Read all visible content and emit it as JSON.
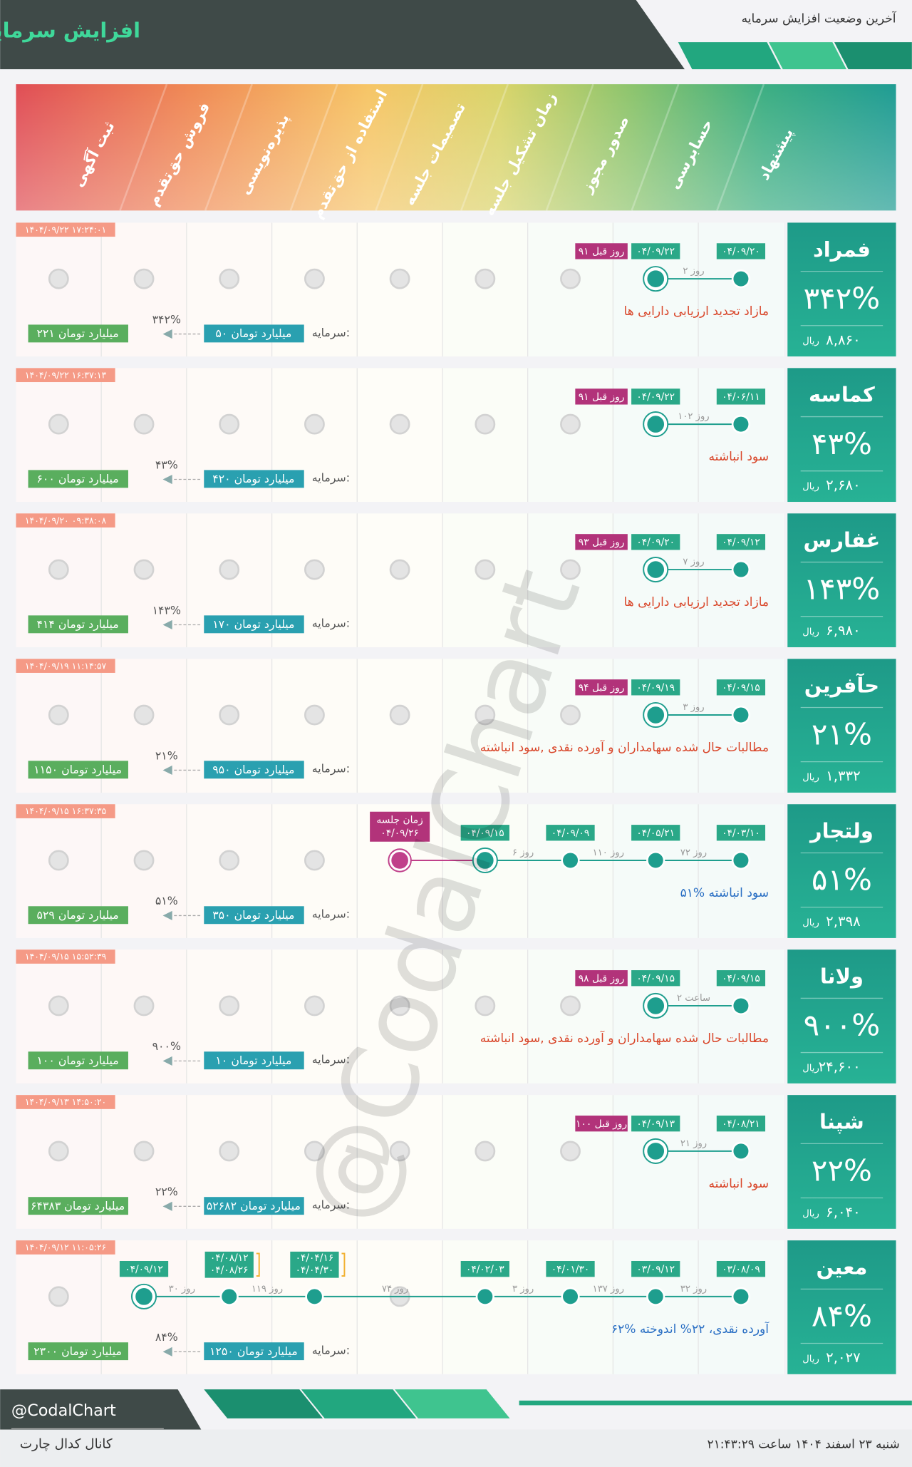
{
  "header": {
    "title": "افزایش سرمایه",
    "subtitle": "آخرین وضعیت افزایش سرمایه"
  },
  "stages": [
    "ثبت آگهی",
    "فروش حق‌تقدم",
    "پذیره‌نویسی",
    "استفاده از حق‌تقدم",
    "تصمیمات جلسه",
    "زمان تشکیل جلسه",
    "صدور مجوز",
    "حسابرسی",
    "پیشنهاد"
  ],
  "capital_label": "سرمایه:",
  "currency": "ریال",
  "watermark": "@CodalChart",
  "companies": [
    {
      "name": "فمراد",
      "change": "۳۴۲%",
      "price": "۸,۸۶۰",
      "updated": "۱۴۰۴/۰۹/۲۲ ۱۷:۲۴:۰۱",
      "ago": "۹۱ روز قبل",
      "nodes": [
        {
          "date": "۰۴/۰۹/۲۰"
        },
        {
          "date": "۰۴/۰۹/۲۲"
        }
      ],
      "gaps": [
        "۲ روز"
      ],
      "note": "مازاد تجدید ارزیابی دارایی ها",
      "note_color": "#d9472b",
      "capital_from": "۵۰ میلیارد تومان",
      "capital_to": "۲۲۱ میلیارد تومان",
      "growth": "۳۴۲%"
    },
    {
      "name": "کماسه",
      "change": "۴۳%",
      "price": "۲,۶۸۰",
      "updated": "۱۴۰۴/۰۹/۲۲ ۱۶:۳۷:۱۳",
      "ago": "۹۱ روز قبل",
      "nodes": [
        {
          "date": "۰۴/۰۶/۱۱"
        },
        {
          "date": "۰۴/۰۹/۲۲"
        }
      ],
      "gaps": [
        "۱۰۲ روز"
      ],
      "note": "سود انباشته",
      "note_color": "#d9472b",
      "capital_from": "۴۲۰ میلیارد تومان",
      "capital_to": "۶۰۰ میلیارد تومان",
      "growth": "۴۳%"
    },
    {
      "name": "غفارس",
      "change": "۱۴۳%",
      "price": "۶,۹۸۰",
      "updated": "۱۴۰۴/۰۹/۲۰ ۰۹:۳۸:۰۸",
      "ago": "۹۳ روز قبل",
      "nodes": [
        {
          "date": "۰۴/۰۹/۱۲"
        },
        {
          "date": "۰۴/۰۹/۲۰"
        }
      ],
      "gaps": [
        "۷ روز"
      ],
      "note": "مازاد تجدید ارزیابی دارایی ها",
      "note_color": "#d9472b",
      "capital_from": "۱۷۰ میلیارد تومان",
      "capital_to": "۴۱۴ میلیارد تومان",
      "growth": "۱۴۳%"
    },
    {
      "name": "حآفرین",
      "change": "۲۱%",
      "price": "۱,۳۳۲",
      "updated": "۱۴۰۴/۰۹/۱۹ ۱۱:۱۴:۵۷",
      "ago": "۹۴ روز قبل",
      "nodes": [
        {
          "date": "۰۴/۰۹/۱۵"
        },
        {
          "date": "۰۴/۰۹/۱۹"
        }
      ],
      "gaps": [
        "۳ روز"
      ],
      "note": "مطالبات حال شده سهامداران و آورده نقدی ,سود انباشته",
      "note_color": "#d9472b",
      "capital_from": "۹۵۰ میلیارد تومان",
      "capital_to": "۱۱۵۰ میلیارد تومان",
      "growth": "۲۱%"
    },
    {
      "name": "ولتجار",
      "change": "۵۱%",
      "price": "۲,۳۹۸",
      "updated": "۱۴۰۴/۰۹/۱۵ ۱۶:۳۷:۳۵",
      "nodes": [
        {
          "date": "۰۴/۰۳/۱۰"
        },
        {
          "date": "۰۴/۰۵/۲۱"
        },
        {
          "date": "۰۴/۰۹/۰۹"
        },
        {
          "date": "۰۴/۰۹/۱۵"
        }
      ],
      "gaps": [
        "۷۲ روز",
        "۱۱۰ روز",
        "۶ روز"
      ],
      "meeting": {
        "label": "زمان جلسه",
        "date": "۰۴/۰۹/۲۶"
      },
      "note": "۵۱% سود انباشته",
      "note_color": "#2a6fc4",
      "capital_from": "۳۵۰ میلیارد تومان",
      "capital_to": "۵۲۹ میلیارد تومان",
      "growth": "۵۱%"
    },
    {
      "name": "ولانا",
      "change": "۹۰۰%",
      "price": "۲۴,۶۰۰",
      "updated": "۱۴۰۴/۰۹/۱۵ ۱۵:۵۲:۳۹",
      "ago": "۹۸ روز قبل",
      "nodes": [
        {
          "date": "۰۴/۰۹/۱۵"
        },
        {
          "date": "۰۴/۰۹/۱۵"
        }
      ],
      "gaps": [
        "۲ ساعت"
      ],
      "note": "مطالبات حال شده سهامداران و آورده نقدی ,سود انباشته",
      "note_color": "#d9472b",
      "capital_from": "۱۰ میلیارد تومان",
      "capital_to": "۱۰۰ میلیارد تومان",
      "growth": "۹۰۰%"
    },
    {
      "name": "شپنا",
      "change": "۲۲%",
      "price": "۶,۰۴۰",
      "updated": "۱۴۰۴/۰۹/۱۳ ۱۴:۵۰:۲۰",
      "ago": "۱۰۰ روز قبل",
      "nodes": [
        {
          "date": "۰۴/۰۸/۲۱"
        },
        {
          "date": "۰۴/۰۹/۱۳"
        }
      ],
      "gaps": [
        "۲۱ روز"
      ],
      "note": "سود انباشته",
      "note_color": "#d9472b",
      "capital_from": "۵۲۶۸۲ میلیارد تومان",
      "capital_to": "۶۴۳۸۳ میلیارد تومان",
      "growth": "۲۲%"
    },
    {
      "name": "معین",
      "change": "۸۴%",
      "price": "۲,۰۲۷",
      "updated": "۱۴۰۴/۰۹/۱۲ ۱۱:۰۵:۲۶",
      "nodes": [
        {
          "date": "۰۳/۰۸/۰۹"
        },
        {
          "date": "۰۳/۰۹/۱۲"
        },
        {
          "date": "۰۴/۰۱/۳۰"
        },
        {
          "date": "۰۴/۰۲/۰۳"
        },
        null,
        {
          "dates": [
            "۰۴/۰۴/۱۶",
            "۰۴/۰۴/۳۰"
          ]
        },
        {
          "dates": [
            "۰۴/۰۸/۱۲",
            "۰۴/۰۸/۲۶"
          ]
        },
        {
          "date": "۰۴/۰۹/۱۲"
        }
      ],
      "gaps": [
        "۳۲ روز",
        "۱۳۷ روز",
        "۳ روز",
        "۷۴ روز",
        "۱۱۹ روز",
        "۳۰ روز"
      ],
      "note": "۶۲% آورده نقدی، ۲۲% اندوخته",
      "note_color": "#2a6fc4",
      "capital_from": "۱۲۵۰ میلیارد تومان",
      "capital_to": "۲۳۰۰ میلیارد تومان",
      "growth": "۸۴%"
    }
  ],
  "footer": {
    "handle": "@CodalChart",
    "channel": "کانال کدال چارت",
    "datetime": "شنبه ۲۳ اسفند ۱۴۰۴ ساعت ۲۱:۴۳:۲۹"
  }
}
